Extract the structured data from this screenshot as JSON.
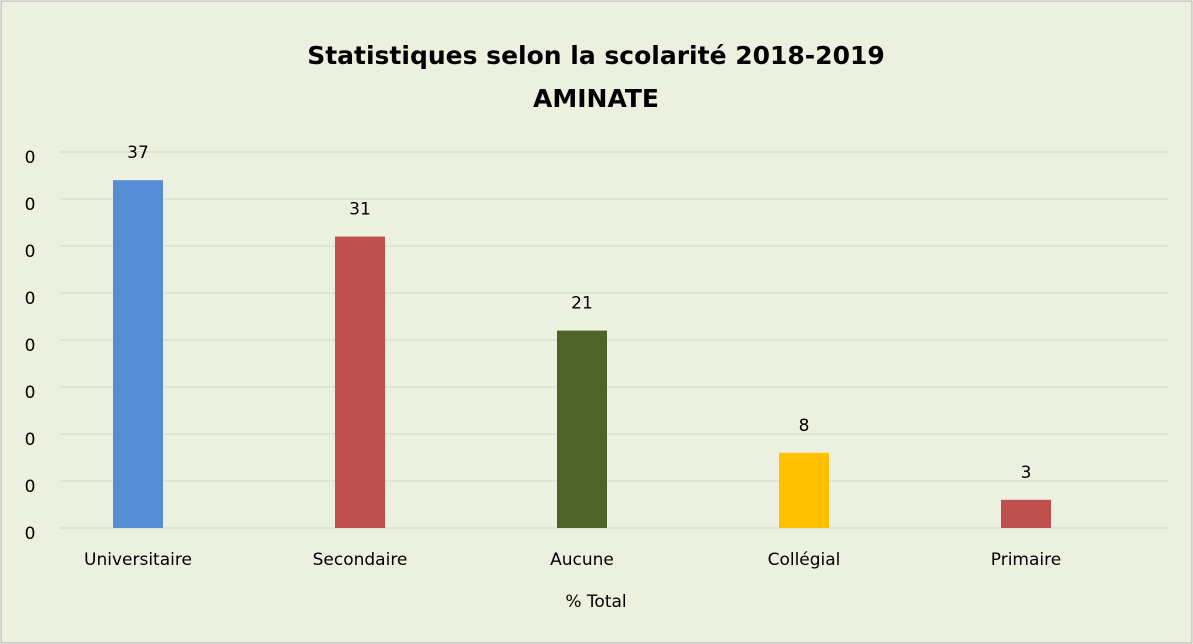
{
  "chart_data": {
    "type": "bar",
    "title": [
      "Statistiques selon la scolarité 2018-2019",
      "AMINATE"
    ],
    "x_label": "% Total",
    "categories": [
      "Universitaire",
      "Secondaire",
      "Aucune",
      "Collégial",
      "Primaire"
    ],
    "values": [
      37,
      31,
      21,
      8,
      3
    ],
    "colors": [
      "#558ed5",
      "#c0504d",
      "#4f6228",
      "#ffc000",
      "#c0504d"
    ],
    "ylim": [
      0,
      40
    ],
    "yticks": [
      0,
      {
        "value": 5,
        "label": "0"
      },
      {
        "value": 10,
        "label": "0"
      },
      {
        "value": 15,
        "label": "0"
      },
      {
        "value": 20,
        "label": "0"
      },
      {
        "value": 25,
        "label": "0"
      },
      {
        "value": 30,
        "label": "0"
      },
      {
        "value": 35,
        "label": "0"
      },
      {
        "value": 40,
        "label": "0"
      }
    ],
    "grid": true
  }
}
